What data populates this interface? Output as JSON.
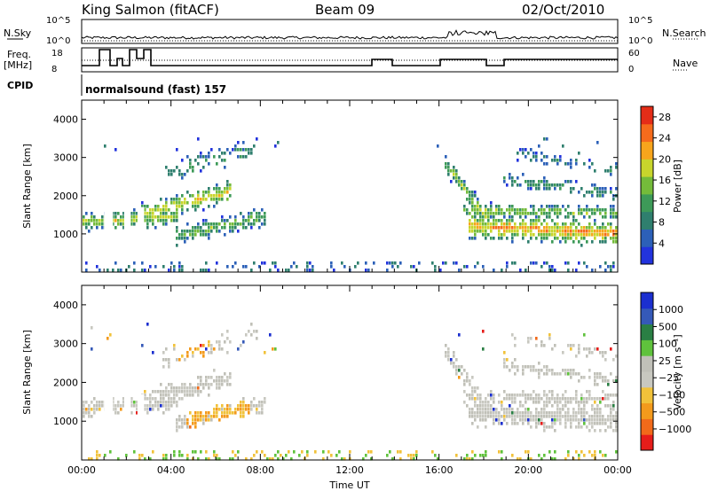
{
  "header": {
    "station": "King Salmon (fitACF)",
    "beam": "Beam 09",
    "date": "02/Oct/2010"
  },
  "top_panels": {
    "nsky_label": "N.Sky",
    "nsearch_label": "N.Search",
    "nsky_ticks": [
      "10^5",
      "10^0"
    ],
    "nsearch_ticks": [
      "10^5",
      "10^0"
    ],
    "freq_label_1": "Freq.",
    "freq_label_2": "[MHz]",
    "freq_ticks": [
      "18",
      "8"
    ],
    "nave_label": "Nave",
    "nave_ticks": [
      "60",
      "0"
    ],
    "cpid_label": "CPID",
    "cpid_text": "normalsound (fast) 157"
  },
  "colors": {
    "power": [
      "#2233dd",
      "#2c60b8",
      "#2f7f6e",
      "#3d9a58",
      "#74bb3a",
      "#c8d52c",
      "#f7a51c",
      "#f56b1c",
      "#e42d18"
    ],
    "velocity": [
      "#e61d1a",
      "#f16a1a",
      "#f39a1c",
      "#f1c23a",
      "#c8c8c0",
      "#c0c0b8",
      "#5fc23c",
      "#2a7f44",
      "#3559b8",
      "#1b2fcf"
    ],
    "ground": "#c8c8c0"
  },
  "chart_data": [
    {
      "type": "heatmap",
      "name": "power",
      "xlabel": "",
      "ylabel": "Slant Range [km]",
      "x_range_hours": [
        0,
        24
      ],
      "ylim": [
        0,
        4500
      ],
      "y_ticks": [
        1000,
        2000,
        3000,
        4000
      ],
      "colorbar": {
        "label": "Power [dB]",
        "ticks": [
          "4",
          "8",
          "12",
          "16",
          "20",
          "24",
          "28"
        ],
        "range": [
          0,
          30
        ]
      }
    },
    {
      "type": "heatmap",
      "name": "velocity",
      "xlabel": "Time UT",
      "ylabel": "Slant Range [km]",
      "x_range_hours": [
        0,
        24
      ],
      "x_tick_labels": [
        "00:00",
        "04:00",
        "08:00",
        "12:00",
        "16:00",
        "20:00",
        "00:00"
      ],
      "ylim": [
        0,
        4500
      ],
      "y_ticks": [
        1000,
        2000,
        3000,
        4000
      ],
      "colorbar": {
        "label": "Velocity [m s⁻¹]",
        "ticks": [
          "1000",
          "500",
          "100",
          "25",
          "−25",
          "−100",
          "−500",
          "−1000"
        ]
      }
    }
  ]
}
